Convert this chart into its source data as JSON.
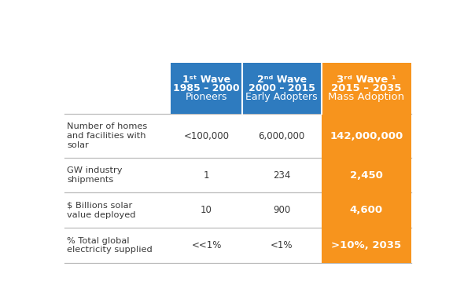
{
  "col_headers": [
    [
      "1ˢᵗ Wave",
      "1985 – 2000",
      "Pioneers"
    ],
    [
      "2ⁿᵈ Wave",
      "2000 – 2015",
      "Early Adopters"
    ],
    [
      "3ʳᵈ Wave ¹",
      "2015 – 2035",
      "Mass Adoption"
    ]
  ],
  "row_labels": [
    "Number of homes\nand facilities with\nsolar",
    "GW industry\nshipments",
    "$ Billions solar\nvalue deployed",
    "% Total global\nelectricity supplied"
  ],
  "col1_values": [
    "<100,000",
    "1",
    "10",
    "<<1%"
  ],
  "col2_values": [
    "6,000,000",
    "234",
    "900",
    "<1%"
  ],
  "col3_values": [
    "142,000,000",
    "2,450",
    "4,600",
    ">10%, 2035"
  ],
  "header_blue": "#2E7BBF",
  "header_orange": "#F7941D",
  "cell_orange": "#F7941D",
  "text_white": "#FFFFFF",
  "text_dark": "#3A3A3A",
  "bg_color": "#FFFFFF",
  "divider_color": "#BBBBBB",
  "figsize": [
    5.9,
    3.77
  ]
}
